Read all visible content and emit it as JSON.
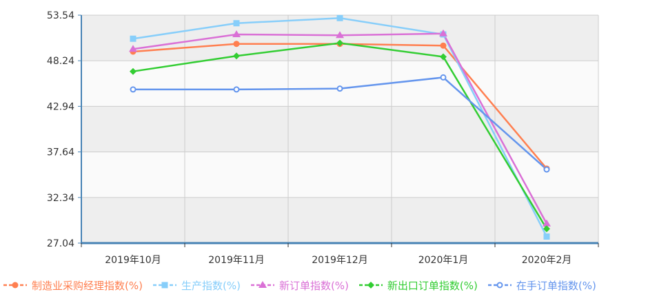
{
  "chart_data": {
    "type": "line",
    "categories": [
      "2019年10月",
      "2019年11月",
      "2019年12月",
      "2020年1月",
      "2020年2月"
    ],
    "ylim": [
      27.04,
      53.54
    ],
    "yticks": [
      "53.54",
      "48.24",
      "42.94",
      "37.64",
      "32.34",
      "27.04"
    ],
    "grid": true,
    "legend_position": "bottom",
    "series": [
      {
        "name": "制造业采购经理指数(%)",
        "color": "#ff7f50",
        "marker": "circle",
        "values": [
          49.3,
          50.2,
          50.2,
          50.0,
          35.7
        ]
      },
      {
        "name": "生产指数(%)",
        "color": "#87cefa",
        "marker": "square",
        "values": [
          50.8,
          52.6,
          53.2,
          51.3,
          27.8
        ]
      },
      {
        "name": "新订单指数(%)",
        "color": "#da70d6",
        "marker": "triangle",
        "values": [
          49.6,
          51.3,
          51.2,
          51.4,
          29.3
        ]
      },
      {
        "name": "新出口订单指数(%)",
        "color": "#32cd32",
        "marker": "diamond",
        "values": [
          47.0,
          48.8,
          50.3,
          48.7,
          28.7
        ]
      },
      {
        "name": "在手订单指数(%)",
        "color": "#6495ed",
        "marker": "hollow-circle",
        "values": [
          44.9,
          44.9,
          45.0,
          46.3,
          35.6
        ]
      }
    ]
  }
}
